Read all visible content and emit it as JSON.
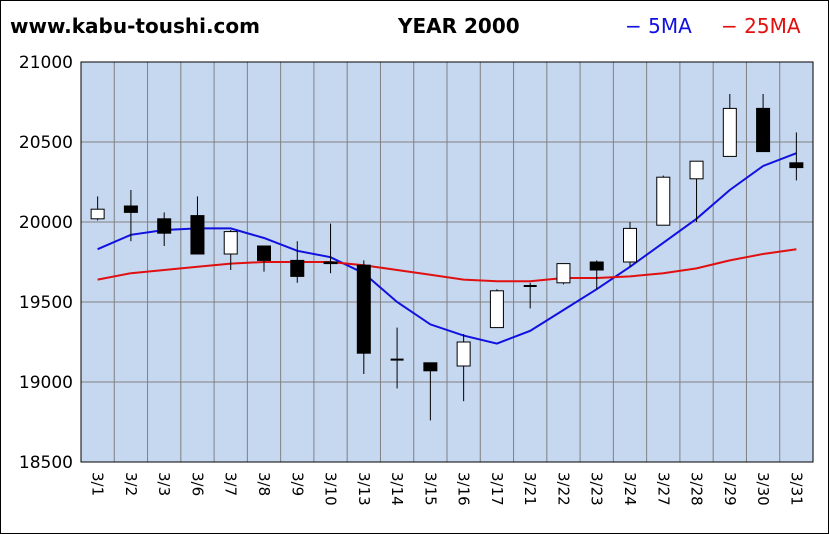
{
  "header": {
    "site": "www.kabu-toushi.com",
    "title": "YEAR 2000"
  },
  "legend": [
    {
      "label": "− 5MA",
      "color": "#1010e0"
    },
    {
      "label": "− 25MA",
      "color": "#e01010"
    }
  ],
  "colors": {
    "plot_bg": "#c6d7f0",
    "grid": "#808080",
    "candle_up": "#ffffff",
    "candle_down": "#000000"
  },
  "chart_data": {
    "type": "candlestick",
    "title": "YEAR 2000",
    "ylim": [
      18500,
      21000
    ],
    "yticks": [
      18500,
      19000,
      19500,
      20000,
      20500,
      21000
    ],
    "grid": true,
    "legend_position": "top-right",
    "categories": [
      "3/1",
      "3/2",
      "3/3",
      "3/6",
      "3/7",
      "3/8",
      "3/9",
      "3/10",
      "3/13",
      "3/14",
      "3/15",
      "3/16",
      "3/17",
      "3/21",
      "3/22",
      "3/23",
      "3/24",
      "3/27",
      "3/28",
      "3/29",
      "3/30",
      "3/31"
    ],
    "candles": [
      {
        "open": 20020,
        "close": 20080,
        "high": 20160,
        "low": 20010
      },
      {
        "open": 20100,
        "close": 20060,
        "high": 20200,
        "low": 19880
      },
      {
        "open": 20020,
        "close": 19930,
        "high": 20060,
        "low": 19850
      },
      {
        "open": 20040,
        "close": 19800,
        "high": 20160,
        "low": 19800
      },
      {
        "open": 19800,
        "close": 19940,
        "high": 19950,
        "low": 19700
      },
      {
        "open": 19850,
        "close": 19760,
        "high": 19850,
        "low": 19690
      },
      {
        "open": 19760,
        "close": 19660,
        "high": 19880,
        "low": 19620
      },
      {
        "open": 19750,
        "close": 19740,
        "high": 19990,
        "low": 19680
      },
      {
        "open": 19730,
        "close": 19180,
        "high": 19760,
        "low": 19050
      },
      {
        "open": 19140,
        "close": 19140,
        "high": 19340,
        "low": 18960
      },
      {
        "open": 19120,
        "close": 19070,
        "high": 19120,
        "low": 18760
      },
      {
        "open": 19100,
        "close": 19250,
        "high": 19300,
        "low": 18880
      },
      {
        "open": 19340,
        "close": 19570,
        "high": 19580,
        "low": 19340
      },
      {
        "open": 19600,
        "close": 19600,
        "high": 19620,
        "low": 19460
      },
      {
        "open": 19620,
        "close": 19740,
        "high": 19740,
        "low": 19610
      },
      {
        "open": 19750,
        "close": 19700,
        "high": 19760,
        "low": 19580
      },
      {
        "open": 19750,
        "close": 19960,
        "high": 20000,
        "low": 19720
      },
      {
        "open": 19980,
        "close": 20280,
        "high": 20290,
        "low": 19980
      },
      {
        "open": 20270,
        "close": 20380,
        "high": 20380,
        "low": 20000
      },
      {
        "open": 20410,
        "close": 20710,
        "high": 20800,
        "low": 20410
      },
      {
        "open": 20710,
        "close": 20440,
        "high": 20800,
        "low": 20440
      },
      {
        "open": 20370,
        "close": 20340,
        "high": 20560,
        "low": 20260
      }
    ],
    "series": [
      {
        "name": "5MA",
        "color": "#1010e0",
        "values": [
          19830,
          19920,
          19950,
          19960,
          19960,
          19900,
          19820,
          19780,
          19680,
          19500,
          19360,
          19290,
          19240,
          19320,
          19450,
          19580,
          19720,
          19870,
          20020,
          20200,
          20350,
          20430
        ]
      },
      {
        "name": "25MA",
        "color": "#e01010",
        "values": [
          19640,
          19680,
          19700,
          19720,
          19740,
          19750,
          19750,
          19750,
          19730,
          19700,
          19670,
          19640,
          19630,
          19630,
          19650,
          19650,
          19660,
          19680,
          19710,
          19760,
          19800,
          19830
        ]
      }
    ]
  }
}
